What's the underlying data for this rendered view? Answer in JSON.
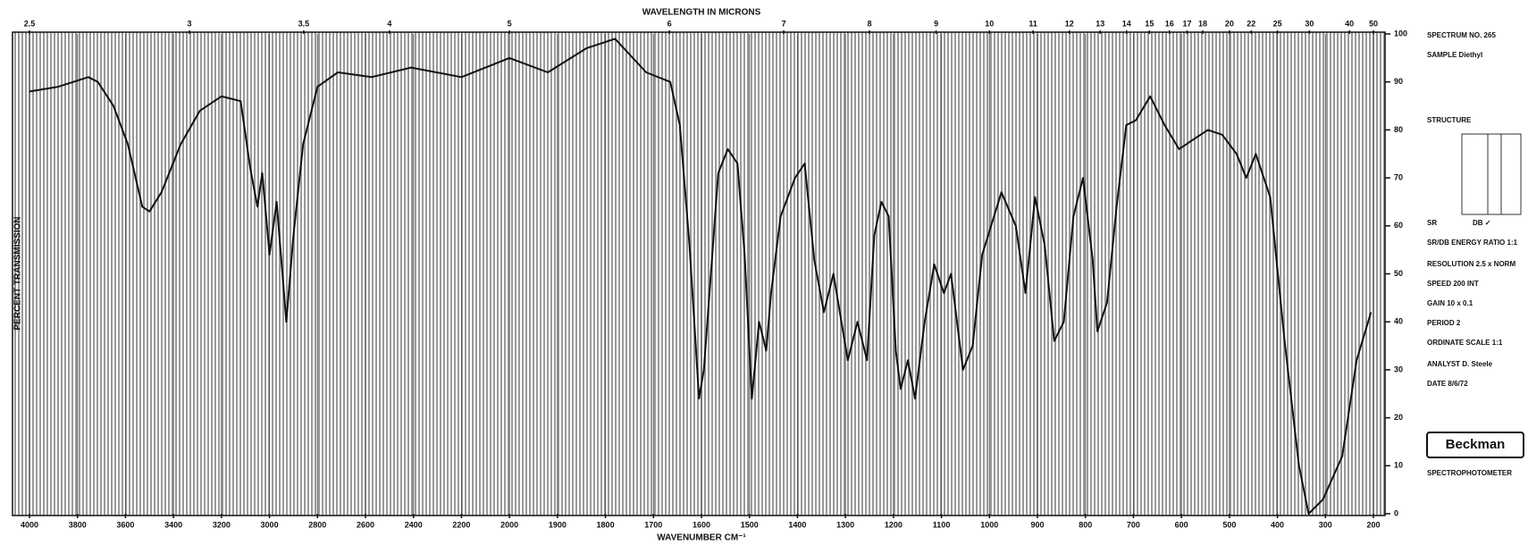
{
  "chart_data": {
    "type": "line",
    "title": "WAVELENGTH IN MICRONS",
    "xlabel": "WAVENUMBER CM⁻¹",
    "ylabel": "PERCENT TRANSMISSION",
    "xlim": [
      4000,
      200
    ],
    "xticks": [
      4000,
      3800,
      3600,
      3400,
      3200,
      3000,
      2800,
      2600,
      2400,
      2200,
      2000,
      1900,
      1800,
      1700,
      1600,
      1500,
      1400,
      1300,
      1200,
      1100,
      1000,
      900,
      800,
      700,
      600,
      500,
      400,
      300,
      200
    ],
    "x2ticks": [
      2.5,
      3,
      3.5,
      4,
      5,
      6,
      7,
      8,
      9,
      10,
      11,
      12,
      13,
      14,
      15,
      16,
      17,
      18,
      20,
      22,
      25,
      30,
      40,
      50
    ],
    "ylim": [
      0,
      100
    ],
    "yticks": [
      0,
      10,
      20,
      30,
      40,
      50,
      60,
      70,
      80,
      90,
      100
    ],
    "color": "#111111",
    "x": [
      4000,
      3880,
      3755,
      3715,
      3650,
      3590,
      3530,
      3500,
      3450,
      3370,
      3290,
      3200,
      3120,
      3080,
      3050,
      3030,
      3000,
      2970,
      2930,
      2900,
      2860,
      2800,
      2715,
      2575,
      2410,
      2200,
      2000,
      1920,
      1840,
      1780,
      1715,
      1665,
      1645,
      1625,
      1605,
      1595,
      1565,
      1545,
      1525,
      1510,
      1495,
      1480,
      1465,
      1455,
      1435,
      1405,
      1385,
      1365,
      1345,
      1325,
      1295,
      1275,
      1255,
      1240,
      1225,
      1210,
      1195,
      1185,
      1170,
      1155,
      1135,
      1115,
      1095,
      1080,
      1055,
      1035,
      1015,
      975,
      945,
      925,
      905,
      885,
      865,
      845,
      825,
      805,
      785,
      775,
      755,
      735,
      715,
      695,
      665,
      635,
      605,
      575,
      545,
      515,
      485,
      465,
      445,
      415,
      385,
      355,
      335,
      305,
      265,
      235,
      205
    ],
    "values": [
      88,
      89,
      91,
      90,
      85,
      77,
      64,
      63,
      67,
      77,
      84,
      87,
      86,
      72,
      64,
      71,
      54,
      65,
      40,
      58,
      77,
      89,
      92,
      91,
      93,
      91,
      95,
      92,
      97,
      99,
      92,
      90,
      81,
      56,
      24,
      30,
      71,
      76,
      73,
      54,
      24,
      40,
      34,
      46,
      62,
      70,
      73,
      53,
      42,
      50,
      32,
      40,
      32,
      58,
      65,
      62,
      34,
      26,
      32,
      24,
      40,
      52,
      46,
      50,
      30,
      35,
      54,
      67,
      60,
      46,
      66,
      56,
      36,
      40,
      62,
      70,
      53,
      38,
      44,
      64,
      81,
      82,
      87,
      81,
      76,
      78,
      80,
      79,
      75,
      70,
      75,
      66,
      36,
      10,
      0,
      3,
      12,
      32,
      42
    ],
    "annotations": [
      "SPECTRUM NO. 265",
      "SAMPLE Diethyl",
      "STRUCTURE",
      "SR",
      "DB ✓",
      "SR/DB ENERGY RATIO 1:1",
      "RESOLUTION 2.5 x NORM",
      "SPEED 200 INT",
      "GAIN 10 x 0.1",
      "PERIOD 2",
      "ORDINATE SCALE 1:1",
      "ANALYST D. Steele",
      "DATE 8/6/72",
      "Beckman",
      "SPECTROPHOTOMETER"
    ]
  }
}
